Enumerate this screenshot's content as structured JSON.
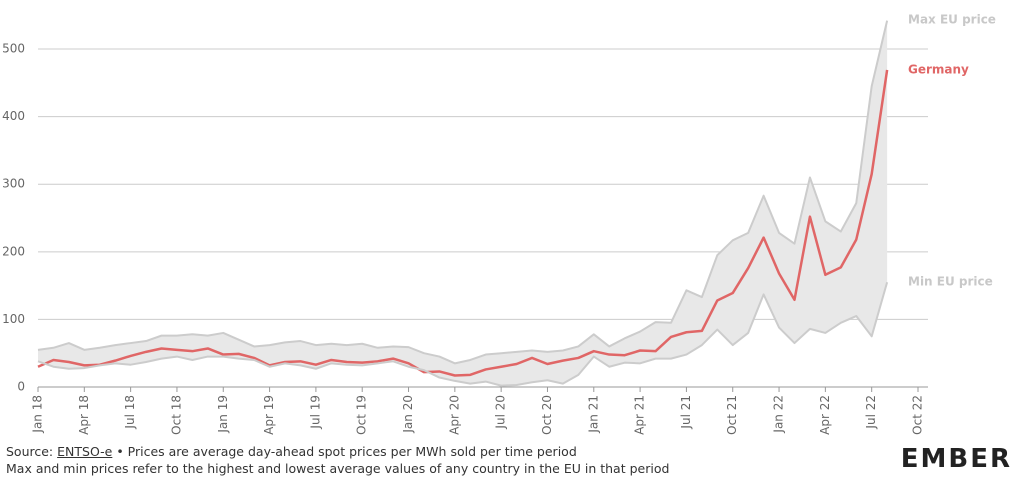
{
  "chart_data": {
    "type": "line",
    "categories": [
      "Jan 18",
      null,
      null,
      "Apr 18",
      null,
      null,
      "Jul 18",
      null,
      null,
      "Oct 18",
      null,
      null,
      "Jan 19",
      null,
      null,
      "Apr 19",
      null,
      null,
      "Jul 19",
      null,
      null,
      "Oct 19",
      null,
      null,
      "Jan 20",
      null,
      null,
      "Apr 20",
      null,
      null,
      "Jul 20",
      null,
      null,
      "Oct 20",
      null,
      null,
      "Jan 21",
      null,
      null,
      "Apr 21",
      null,
      null,
      "Jul 21",
      null,
      null,
      "Oct 21",
      null,
      null,
      "Jan 22",
      null,
      null,
      "Apr 22",
      null,
      null,
      "Jul 22",
      null,
      null,
      "Oct 22"
    ],
    "series": [
      {
        "name": "Max EU price",
        "color": "#cccccc",
        "values": [
          55,
          58,
          65,
          55,
          58,
          62,
          65,
          68,
          76,
          76,
          78,
          76,
          80,
          70,
          60,
          62,
          66,
          68,
          62,
          64,
          62,
          64,
          58,
          60,
          59,
          50,
          45,
          35,
          40,
          48,
          50,
          52,
          54,
          52,
          54,
          60,
          78,
          60,
          72,
          82,
          96,
          95,
          143,
          133,
          195,
          217,
          228,
          283,
          228,
          212,
          310,
          245,
          230,
          272,
          445,
          542,
          null,
          null
        ]
      },
      {
        "name": "Germany",
        "color": "#e06666",
        "values": [
          30,
          40,
          37,
          32,
          33,
          39,
          46,
          52,
          57,
          55,
          53,
          57,
          48,
          49,
          43,
          32,
          37,
          38,
          33,
          40,
          37,
          36,
          38,
          42,
          35,
          22,
          23,
          17,
          18,
          26,
          30,
          34,
          43,
          34,
          39,
          43,
          53,
          48,
          47,
          54,
          53,
          74,
          81,
          83,
          128,
          139,
          176,
          221,
          168,
          129,
          252,
          166,
          177,
          218,
          315,
          469,
          null,
          null
        ]
      },
      {
        "name": "Min EU price",
        "color": "#cccccc",
        "values": [
          38,
          30,
          27,
          28,
          32,
          35,
          33,
          37,
          42,
          45,
          40,
          45,
          45,
          42,
          40,
          30,
          35,
          32,
          27,
          35,
          33,
          32,
          35,
          38,
          30,
          25,
          14,
          9,
          5,
          8,
          2,
          3,
          7,
          10,
          5,
          18,
          45,
          30,
          36,
          35,
          42,
          42,
          48,
          62,
          85,
          62,
          80,
          137,
          88,
          65,
          86,
          80,
          95,
          105,
          75,
          155,
          null,
          null
        ]
      }
    ],
    "band_color": "#e8e8e8",
    "ylim": [
      0,
      540
    ],
    "yticks": [
      0,
      100,
      200,
      300,
      400,
      500
    ],
    "grid": true
  },
  "footer": {
    "source_prefix": "Source: ",
    "source_link": "ENTSO-e",
    "source_suffix": " • Prices are average day-ahead spot prices per MWh sold per time period",
    "note": "Max and min prices refer to the highest and lowest average values of any country in the EU in that period",
    "logo": "EMBER"
  }
}
